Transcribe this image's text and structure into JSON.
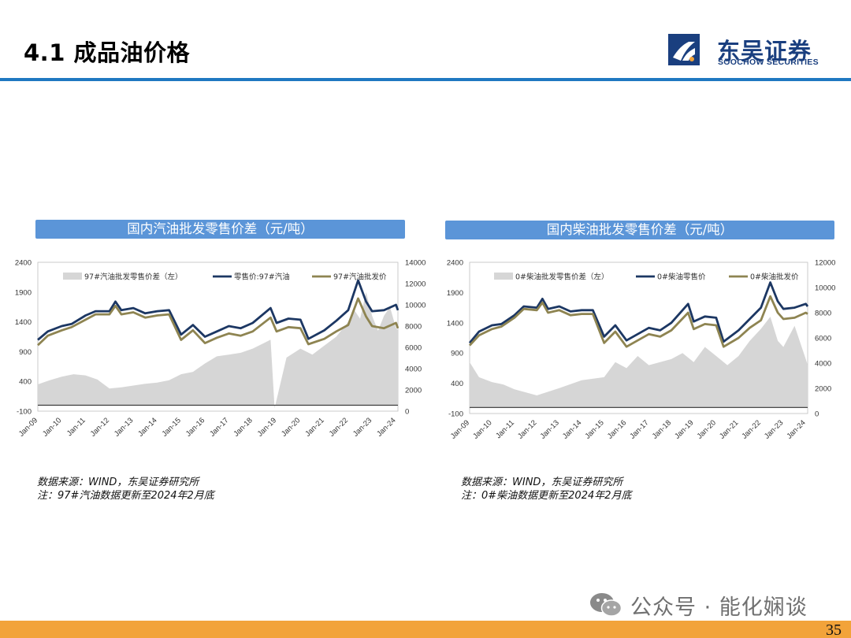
{
  "header": {
    "title": "4.1 成品油价格",
    "logo_cn": "东吴证券",
    "logo_en": "SOOCHOW SECURITIES"
  },
  "brand_colors": {
    "accent": "#1f78c1",
    "banner": "#5b95d8",
    "logo": "#1a3f7f",
    "footer": "#f2a33a"
  },
  "chart_data": [
    {
      "type": "area+line",
      "title": "国内汽油批发零售价差（元/吨）",
      "x_labels": [
        "Jan-09",
        "Jan-10",
        "Jan-11",
        "Jan-12",
        "Jan-13",
        "Jan-14",
        "Jan-15",
        "Jan-16",
        "Jan-17",
        "Jan-18",
        "Jan-19",
        "Jan-20",
        "Jan-21",
        "Jan-22",
        "Jan-23",
        "Jan-24"
      ],
      "x_range": [
        "2009-01",
        "2024-02"
      ],
      "y_left": {
        "min": -100,
        "max": 2400,
        "ticks": [
          -100,
          400,
          900,
          1400,
          1900,
          2400
        ]
      },
      "y_right": {
        "min": 0,
        "max": 14000,
        "ticks": [
          0,
          2000,
          4000,
          6000,
          8000,
          10000,
          12000,
          14000
        ]
      },
      "legend": [
        "97#汽油批发零售价差（左）",
        "零售价:97#汽油",
        "97#汽油批发价"
      ],
      "series": [
        {
          "name": "97#汽油批发零售价差（左）",
          "axis": "left",
          "style": "area",
          "color": "#d6d6d6",
          "x": [
            "2009-01",
            "2009-07",
            "2010-01",
            "2010-07",
            "2011-01",
            "2011-07",
            "2012-01",
            "2012-07",
            "2013-01",
            "2013-07",
            "2014-01",
            "2014-07",
            "2015-01",
            "2015-07",
            "2016-01",
            "2016-07",
            "2017-01",
            "2017-07",
            "2018-01",
            "2018-07",
            "2018-10",
            "2018-12",
            "2019-06",
            "2020-01",
            "2020-07",
            "2021-01",
            "2021-07",
            "2022-01",
            "2022-04",
            "2022-07",
            "2022-10",
            "2023-01",
            "2023-04",
            "2023-07",
            "2023-10",
            "2024-01",
            "2024-02"
          ],
          "values": [
            350,
            420,
            480,
            520,
            500,
            430,
            280,
            300,
            330,
            360,
            380,
            420,
            520,
            560,
            700,
            820,
            850,
            880,
            950,
            1050,
            1100,
            -50,
            800,
            950,
            850,
            1000,
            1150,
            1400,
            1600,
            1450,
            1900,
            1500,
            1250,
            1500,
            1650,
            1300,
            1250
          ]
        },
        {
          "name": "零售价:97#汽油",
          "axis": "right",
          "style": "line",
          "color": "#1c3763",
          "x": [
            "2009-01",
            "2009-06",
            "2010-01",
            "2010-06",
            "2011-01",
            "2011-06",
            "2012-01",
            "2012-04",
            "2012-07",
            "2013-01",
            "2013-07",
            "2014-01",
            "2014-07",
            "2015-01",
            "2015-07",
            "2016-01",
            "2016-07",
            "2017-01",
            "2017-07",
            "2018-01",
            "2018-10",
            "2019-01",
            "2019-07",
            "2020-01",
            "2020-05",
            "2021-01",
            "2021-07",
            "2022-01",
            "2022-06",
            "2022-10",
            "2023-01",
            "2023-07",
            "2024-01",
            "2024-02"
          ],
          "values": [
            6700,
            7500,
            8000,
            8200,
            9000,
            9400,
            9400,
            10300,
            9500,
            9700,
            9200,
            9400,
            9500,
            7200,
            8100,
            7000,
            7500,
            8000,
            7800,
            8300,
            9700,
            8300,
            8700,
            8600,
            6800,
            7600,
            8500,
            9500,
            12300,
            10300,
            9400,
            9500,
            10000,
            9500
          ]
        },
        {
          "name": "97#汽油批发价",
          "axis": "right",
          "style": "line",
          "color": "#8e8451",
          "x": [
            "2009-01",
            "2009-06",
            "2010-01",
            "2010-06",
            "2011-01",
            "2011-06",
            "2012-01",
            "2012-04",
            "2012-07",
            "2013-01",
            "2013-07",
            "2014-01",
            "2014-07",
            "2015-01",
            "2015-07",
            "2016-01",
            "2016-07",
            "2017-01",
            "2017-07",
            "2018-01",
            "2018-10",
            "2019-01",
            "2019-07",
            "2020-01",
            "2020-05",
            "2021-01",
            "2021-07",
            "2022-01",
            "2022-06",
            "2022-10",
            "2023-01",
            "2023-07",
            "2024-01",
            "2024-02"
          ],
          "values": [
            6200,
            7100,
            7600,
            7900,
            8600,
            9100,
            9100,
            9900,
            9100,
            9300,
            8800,
            9000,
            9100,
            6700,
            7600,
            6400,
            6900,
            7300,
            7100,
            7500,
            8800,
            7500,
            7900,
            7800,
            6300,
            6800,
            7500,
            8100,
            10600,
            8900,
            8000,
            7800,
            8300,
            7800
          ]
        }
      ]
    },
    {
      "type": "area+line",
      "title": "国内柴油批发零售价差（元/吨）",
      "x_labels": [
        "Jan-09",
        "Jan-10",
        "Jan-11",
        "Jan-12",
        "Jan-13",
        "Jan-14",
        "Jan-15",
        "Jan-16",
        "Jan-17",
        "Jan-18",
        "Jan-19",
        "Jan-20",
        "Jan-21",
        "Jan-22",
        "Jan-23",
        "Jan-24"
      ],
      "x_range": [
        "2009-01",
        "2024-02"
      ],
      "y_left": {
        "min": -100,
        "max": 2400,
        "ticks": [
          -100,
          400,
          900,
          1400,
          1900,
          2400
        ]
      },
      "y_right": {
        "min": 0,
        "max": 12000,
        "ticks": [
          0,
          2000,
          4000,
          6000,
          8000,
          10000,
          12000
        ]
      },
      "legend": [
        "0#柴油批发零售价差（左）",
        "0#柴油零售价",
        "0#柴油批发价"
      ],
      "series": [
        {
          "name": "0#柴油批发零售价差（左）",
          "axis": "left",
          "style": "area",
          "color": "#d6d6d6",
          "x": [
            "2009-01",
            "2009-06",
            "2010-01",
            "2010-07",
            "2011-01",
            "2011-07",
            "2012-01",
            "2013-01",
            "2014-01",
            "2015-01",
            "2015-07",
            "2016-01",
            "2016-07",
            "2017-01",
            "2018-01",
            "2018-07",
            "2019-01",
            "2019-07",
            "2020-01",
            "2020-07",
            "2021-01",
            "2021-07",
            "2022-01",
            "2022-06",
            "2022-10",
            "2023-01",
            "2023-07",
            "2024-01",
            "2024-02"
          ],
          "values": [
            750,
            500,
            420,
            380,
            300,
            250,
            200,
            320,
            450,
            500,
            750,
            650,
            850,
            700,
            800,
            900,
            750,
            1000,
            850,
            700,
            850,
            1100,
            1300,
            1500,
            1100,
            1000,
            1350,
            800,
            700
          ]
        },
        {
          "name": "0#柴油零售价",
          "axis": "right",
          "style": "line",
          "color": "#1c3763",
          "x": [
            "2009-01",
            "2009-06",
            "2010-01",
            "2010-06",
            "2011-01",
            "2011-06",
            "2012-01",
            "2012-04",
            "2012-07",
            "2013-01",
            "2013-07",
            "2014-01",
            "2014-07",
            "2015-01",
            "2015-07",
            "2016-01",
            "2016-07",
            "2017-01",
            "2017-07",
            "2018-01",
            "2018-10",
            "2019-01",
            "2019-07",
            "2020-01",
            "2020-05",
            "2021-01",
            "2021-07",
            "2022-01",
            "2022-06",
            "2022-10",
            "2023-01",
            "2023-07",
            "2024-01",
            "2024-02"
          ],
          "values": [
            5600,
            6500,
            7000,
            7100,
            7800,
            8500,
            8400,
            9100,
            8300,
            8500,
            8100,
            8200,
            8200,
            6100,
            7000,
            5800,
            6300,
            6800,
            6600,
            7200,
            8700,
            7300,
            7700,
            7600,
            5700,
            6600,
            7500,
            8400,
            10400,
            8900,
            8300,
            8400,
            8700,
            8500
          ]
        },
        {
          "name": "0#柴油批发价",
          "axis": "right",
          "style": "line",
          "color": "#8e8451",
          "x": [
            "2009-01",
            "2009-06",
            "2010-01",
            "2010-06",
            "2011-01",
            "2011-06",
            "2012-01",
            "2012-04",
            "2012-07",
            "2013-01",
            "2013-07",
            "2014-01",
            "2014-07",
            "2015-01",
            "2015-07",
            "2016-01",
            "2016-07",
            "2017-01",
            "2017-07",
            "2018-01",
            "2018-10",
            "2019-01",
            "2019-07",
            "2020-01",
            "2020-05",
            "2021-01",
            "2021-07",
            "2022-01",
            "2022-06",
            "2022-10",
            "2023-01",
            "2023-07",
            "2024-01",
            "2024-02"
          ],
          "values": [
            5400,
            6200,
            6700,
            6900,
            7600,
            8300,
            8200,
            8800,
            8000,
            8200,
            7800,
            7900,
            7900,
            5600,
            6500,
            5300,
            5800,
            6300,
            6100,
            6600,
            8000,
            6700,
            7100,
            7000,
            5300,
            6000,
            6800,
            7400,
            9300,
            8000,
            7500,
            7600,
            8000,
            7900
          ]
        }
      ]
    }
  ],
  "notes": {
    "left_source": "数据来源：WIND，东吴证券研究所",
    "left_note": "注：97#汽油数据更新至2024年2月底",
    "right_source": "数据来源：WIND，东吴证券研究所",
    "right_note": "注：0#柴油数据更新至2024年2月底"
  },
  "watermark": "公众号 · 能化娴谈",
  "page_number": "35"
}
